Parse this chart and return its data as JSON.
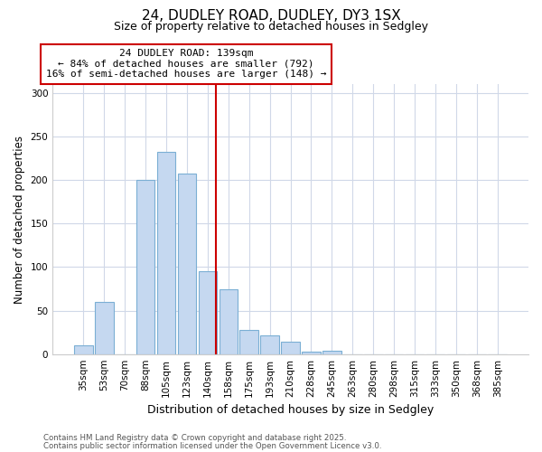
{
  "title1": "24, DUDLEY ROAD, DUDLEY, DY3 1SX",
  "title2": "Size of property relative to detached houses in Sedgley",
  "categories": [
    "35sqm",
    "53sqm",
    "70sqm",
    "88sqm",
    "105sqm",
    "123sqm",
    "140sqm",
    "158sqm",
    "175sqm",
    "193sqm",
    "210sqm",
    "228sqm",
    "245sqm",
    "263sqm",
    "280sqm",
    "298sqm",
    "315sqm",
    "333sqm",
    "350sqm",
    "368sqm",
    "385sqm"
  ],
  "values": [
    10,
    60,
    0,
    200,
    232,
    208,
    95,
    75,
    28,
    22,
    14,
    3,
    4,
    0,
    0,
    0,
    0,
    0,
    0,
    0,
    0
  ],
  "bar_color": "#c5d8f0",
  "bar_edge_color": "#7bafd4",
  "vline_index": 6,
  "vline_color": "#cc0000",
  "annotation_line1": "24 DUDLEY ROAD: 139sqm",
  "annotation_line2": "← 84% of detached houses are smaller (792)",
  "annotation_line3": "16% of semi-detached houses are larger (148) →",
  "annotation_box_color": "#ffffff",
  "annotation_box_edge": "#cc0000",
  "ylabel": "Number of detached properties",
  "xlabel": "Distribution of detached houses by size in Sedgley",
  "ylim": [
    0,
    310
  ],
  "yticks": [
    0,
    50,
    100,
    150,
    200,
    250,
    300
  ],
  "footer1": "Contains HM Land Registry data © Crown copyright and database right 2025.",
  "footer2": "Contains public sector information licensed under the Open Government Licence v3.0.",
  "bg_color": "#ffffff",
  "plot_bg_color": "#ffffff",
  "title1_fontsize": 11,
  "title2_fontsize": 9
}
